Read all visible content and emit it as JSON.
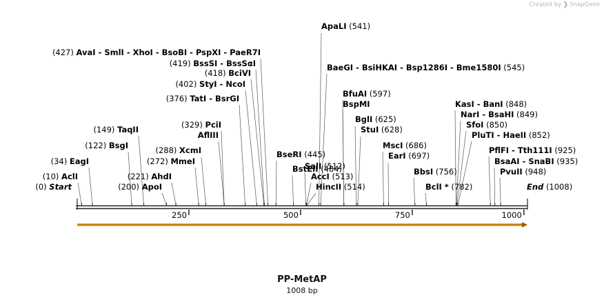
{
  "credit": {
    "prefix": "Created by",
    "brand": "SnapGene"
  },
  "sequence": {
    "name": "PP-MetAP",
    "length_label": "1008 bp",
    "length": 1008
  },
  "ruler": {
    "ticks": [
      250,
      500,
      750,
      1000
    ]
  },
  "feature": {
    "start": 1,
    "end": 1008,
    "direction": "forward",
    "color": "#f0a830"
  },
  "labels": [
    {
      "pos": 0,
      "text": "Start",
      "num": "(0)",
      "numSide": "left",
      "italic": true
    },
    {
      "pos": 10,
      "text": "AclI",
      "num": "(10)",
      "numSide": "left"
    },
    {
      "pos": 34,
      "text": "EagI",
      "num": "(34)",
      "numSide": "left"
    },
    {
      "pos": 122,
      "text": "BsgI",
      "num": "(122)",
      "numSide": "left"
    },
    {
      "pos": 149,
      "text": "TaqII",
      "num": "(149)",
      "numSide": "left"
    },
    {
      "pos": 200,
      "text": "ApoI",
      "num": "(200)",
      "numSide": "left"
    },
    {
      "pos": 221,
      "text": "AhdI",
      "num": "(221)",
      "numSide": "left"
    },
    {
      "pos": 272,
      "text": "MmeI",
      "num": "(272)",
      "numSide": "left"
    },
    {
      "pos": 288,
      "text": "XcmI",
      "num": "(288)",
      "numSide": "left"
    },
    {
      "pos": 329,
      "text": "PciI",
      "num": "(329)",
      "numSide": "left"
    },
    {
      "pos": 329,
      "text": "AflIII",
      "num": "",
      "numSide": "left"
    },
    {
      "pos": 376,
      "text": "TatI  -  BsrGI",
      "num": "(376)",
      "numSide": "left"
    },
    {
      "pos": 402,
      "text": "StyI  -  NcoI",
      "num": "(402)",
      "numSide": "left"
    },
    {
      "pos": 418,
      "text": "BciVI",
      "num": "(418)",
      "numSide": "left"
    },
    {
      "pos": 419,
      "text": "BssSI  -  BssSαI",
      "num": "(419)",
      "numSide": "left"
    },
    {
      "pos": 427,
      "text": "AvaI  -  SmlI  -  XhoI  -  BsoBI  -  PspXI  -  PaeR7I",
      "num": "(427)",
      "numSide": "left"
    },
    {
      "pos": 445,
      "text": "BseRI",
      "num": "(445)",
      "numSide": "right"
    },
    {
      "pos": 484,
      "text": "BstEII",
      "num": "(484)",
      "numSide": "right"
    },
    {
      "pos": 512,
      "text": "SalI",
      "num": "(512)",
      "numSide": "right"
    },
    {
      "pos": 513,
      "text": "AccI",
      "num": "(513)",
      "numSide": "right"
    },
    {
      "pos": 514,
      "text": "HincII",
      "num": "(514)",
      "numSide": "right"
    },
    {
      "pos": 541,
      "text": "ApaLI",
      "num": "(541)",
      "numSide": "right"
    },
    {
      "pos": 545,
      "text": "BaeGI  -  BsiHKAI  -  Bsp1286I  -  Bme1580I",
      "num": "(545)",
      "numSide": "right"
    },
    {
      "pos": 597,
      "text": "BfuAI",
      "num": "(597)",
      "numSide": "right"
    },
    {
      "pos": 597,
      "text": "BspMI",
      "num": "",
      "numSide": "right"
    },
    {
      "pos": 625,
      "text": "BglI",
      "num": "(625)",
      "numSide": "right"
    },
    {
      "pos": 628,
      "text": "StuI",
      "num": "(628)",
      "numSide": "right"
    },
    {
      "pos": 686,
      "text": "MscI",
      "num": "(686)",
      "numSide": "right"
    },
    {
      "pos": 697,
      "text": "EarI",
      "num": "(697)",
      "numSide": "right"
    },
    {
      "pos": 756,
      "text": "BbsI",
      "num": "(756)",
      "numSide": "right"
    },
    {
      "pos": 782,
      "text": "BclI *",
      "num": "(782)",
      "numSide": "right"
    },
    {
      "pos": 848,
      "text": "KasI  -  BanI",
      "num": "(848)",
      "numSide": "right"
    },
    {
      "pos": 849,
      "text": "NarI  -  BsaHI",
      "num": "(849)",
      "numSide": "right"
    },
    {
      "pos": 850,
      "text": "SfoI",
      "num": "(850)",
      "numSide": "right"
    },
    {
      "pos": 852,
      "text": "PluTI  -  HaeII",
      "num": "(852)",
      "numSide": "right"
    },
    {
      "pos": 925,
      "text": "PflFI  -  Tth111I",
      "num": "(925)",
      "numSide": "right"
    },
    {
      "pos": 935,
      "text": "BsaAI  -  SnaBI",
      "num": "(935)",
      "numSide": "right"
    },
    {
      "pos": 948,
      "text": "PvuII",
      "num": "(948)",
      "numSide": "right"
    },
    {
      "pos": 1008,
      "text": "End",
      "num": "(1008)",
      "numSide": "right",
      "italic": true
    }
  ]
}
